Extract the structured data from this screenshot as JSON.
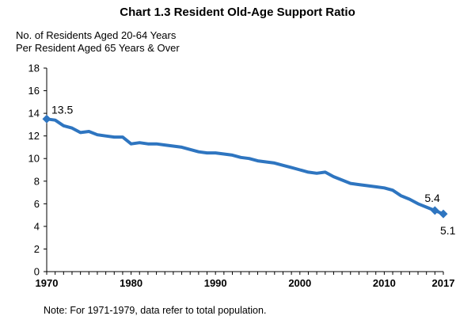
{
  "chart_data": {
    "type": "line",
    "title": "Chart 1.3  Resident Old-Age Support Ratio",
    "ylabel_lines": [
      "No. of Residents Aged 20-64 Years",
      "Per Resident Aged 65 Years & Over"
    ],
    "xlabel": "",
    "ylim": [
      0,
      18
    ],
    "yticks": [
      0,
      2,
      4,
      6,
      8,
      10,
      12,
      14,
      16,
      18
    ],
    "xlim": [
      1970,
      2017
    ],
    "xtick_labels": [
      "1970",
      "1980",
      "1990",
      "2000",
      "2010",
      "2017"
    ],
    "xtick_values": [
      1970,
      1980,
      1990,
      2000,
      2010,
      2017
    ],
    "grid": false,
    "legend": "none",
    "series": [
      {
        "color": "#2E75C0",
        "x": [
          1970,
          1971,
          1972,
          1973,
          1974,
          1975,
          1976,
          1977,
          1978,
          1979,
          1980,
          1981,
          1982,
          1983,
          1984,
          1985,
          1986,
          1987,
          1988,
          1989,
          1990,
          1991,
          1992,
          1993,
          1994,
          1995,
          1996,
          1997,
          1998,
          1999,
          2000,
          2001,
          2002,
          2003,
          2004,
          2005,
          2006,
          2007,
          2008,
          2009,
          2010,
          2011,
          2012,
          2013,
          2014,
          2015,
          2016,
          2017
        ],
        "values": [
          13.5,
          13.4,
          12.9,
          12.7,
          12.3,
          12.4,
          12.1,
          12.0,
          11.9,
          11.9,
          11.3,
          11.4,
          11.3,
          11.3,
          11.2,
          11.1,
          11.0,
          10.8,
          10.6,
          10.5,
          10.5,
          10.4,
          10.3,
          10.1,
          10.0,
          9.8,
          9.7,
          9.6,
          9.4,
          9.2,
          9.0,
          8.8,
          8.7,
          8.8,
          8.4,
          8.1,
          7.8,
          7.7,
          7.6,
          7.5,
          7.4,
          7.2,
          6.7,
          6.4,
          6.0,
          5.7,
          5.4,
          5.1
        ]
      }
    ],
    "data_labels": [
      {
        "x": 1970,
        "y": 13.5,
        "text": "13.5"
      },
      {
        "x": 2016,
        "y": 5.4,
        "text": "5.4"
      },
      {
        "x": 2017,
        "y": 5.1,
        "text": "5.1"
      }
    ],
    "markers_at": [
      1970,
      2016,
      2017
    ]
  },
  "note": "Note: For 1971-1979, data refer to total population."
}
